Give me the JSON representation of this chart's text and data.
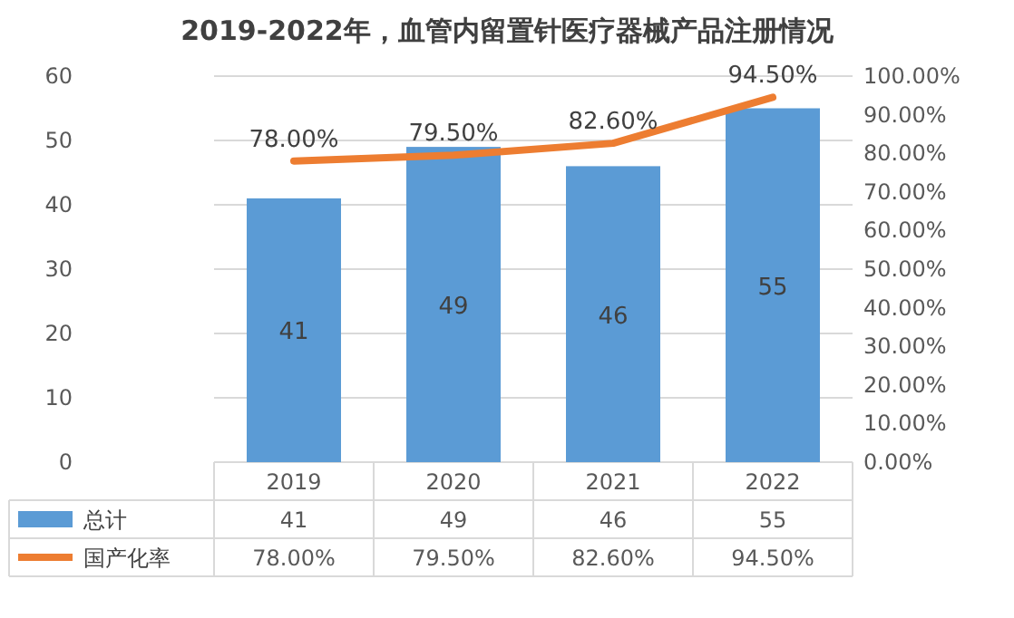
{
  "chart_data": {
    "type": "bar",
    "title": "2019-2022年，血管内留置针医疗器械产品注册情况",
    "categories": [
      "2019",
      "2020",
      "2021",
      "2022"
    ],
    "series": [
      {
        "name": "总计",
        "color": "#5b9bd5",
        "values": [
          41,
          49,
          46,
          55
        ],
        "value_labels": [
          "41",
          "49",
          "46",
          "55"
        ]
      },
      {
        "name": "国产化率",
        "type": "line",
        "axis": "y2",
        "color": "#ed7d31",
        "values": [
          78,
          79.5,
          82.6,
          94.5
        ],
        "value_labels": [
          "78.00%",
          "79.50%",
          "82.60%",
          "94.50%"
        ]
      }
    ],
    "ylim": [
      0,
      60
    ],
    "yticks": [
      0,
      10,
      20,
      30,
      40,
      50,
      60
    ],
    "y2lim": [
      0,
      100
    ],
    "y2ticks": [
      {
        "value": 0,
        "label": "0.00%"
      },
      {
        "value": 10,
        "label": "10.00%"
      },
      {
        "value": 20,
        "label": "20.00%"
      },
      {
        "value": 30,
        "label": "30.00%"
      },
      {
        "value": 40,
        "label": "40.00%"
      },
      {
        "value": 50,
        "label": "50.00%"
      },
      {
        "value": 60,
        "label": "60.00%"
      },
      {
        "value": 70,
        "label": "70.00%"
      },
      {
        "value": 80,
        "label": "80.00%"
      },
      {
        "value": 90,
        "label": "90.00%"
      },
      {
        "value": 100,
        "label": "100.00%"
      }
    ],
    "grid": "y",
    "legend": "bottom left"
  }
}
